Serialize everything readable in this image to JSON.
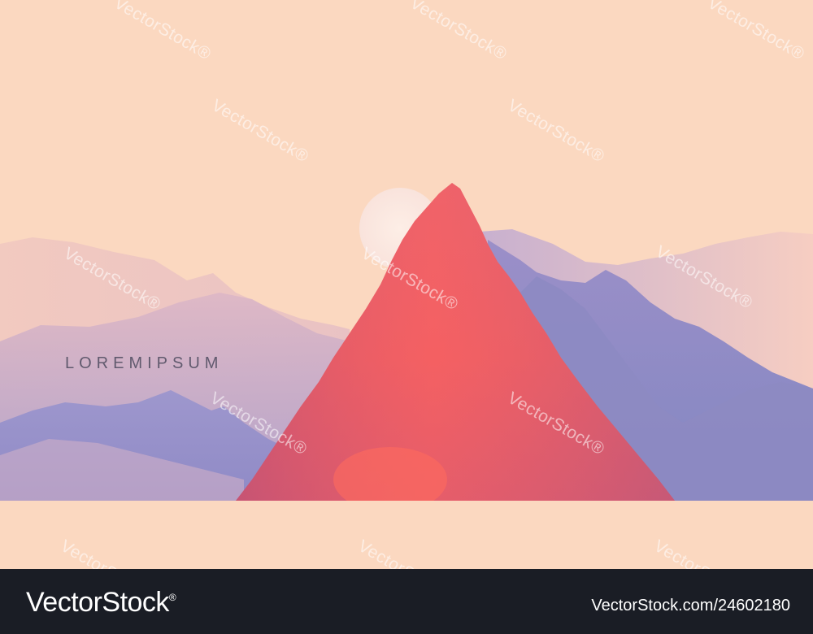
{
  "image": {
    "headline": "LOREMIPSUM",
    "colors": {
      "sky": "#fbd8c0",
      "sun": "#fbe7e0",
      "main_peak": "#f0565b",
      "ridges": "#8a8bc6",
      "fog": "#f3c9bd",
      "ground": "#fbd8c0"
    }
  },
  "watermark": {
    "text": "VectorStock",
    "reg": "®"
  },
  "footer": {
    "brand": "VectorStock",
    "reg": "®",
    "id_text": "VectorStock.com/24602180"
  }
}
